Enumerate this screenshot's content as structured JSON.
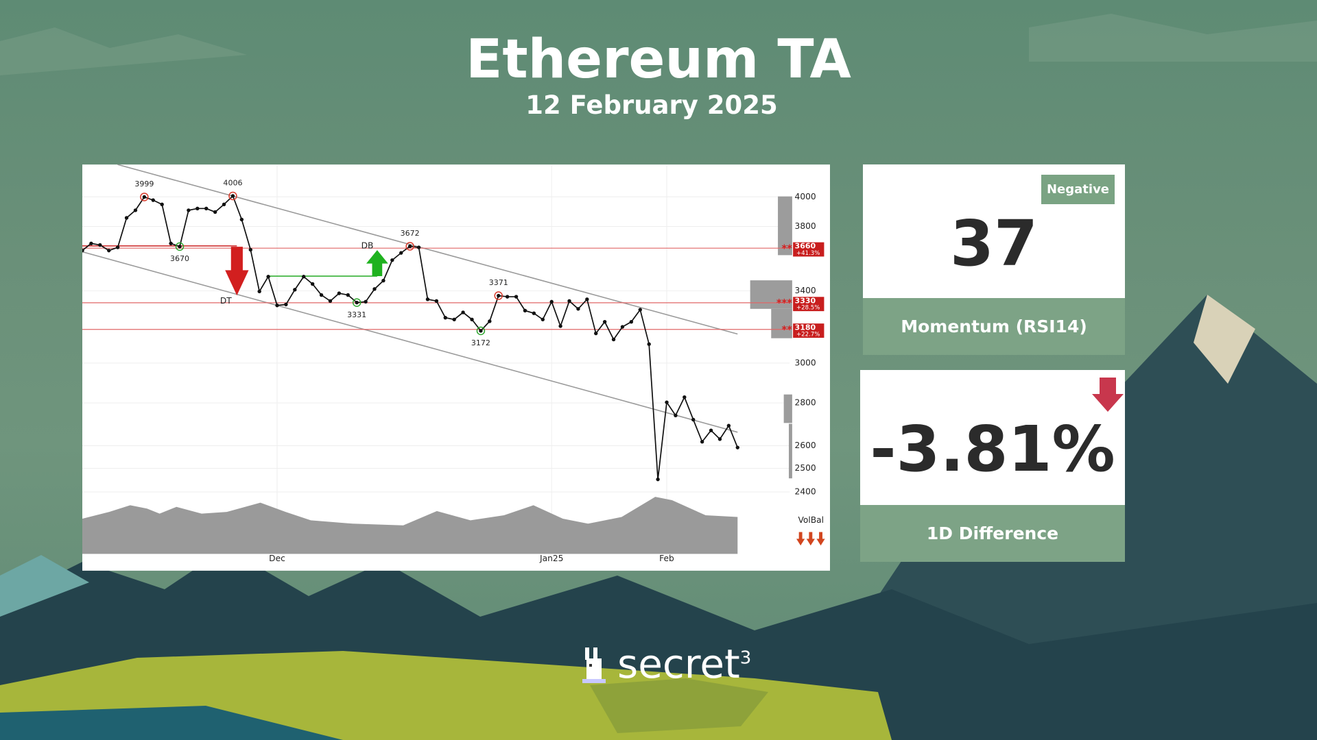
{
  "header": {
    "title": "Ethereum TA",
    "date": "12 February 2025"
  },
  "chart_data": {
    "type": "line",
    "categories": [
      null,
      null,
      null,
      null,
      null,
      null,
      null,
      null,
      null,
      null,
      null,
      null,
      null,
      null,
      null,
      null,
      null,
      null,
      null,
      null,
      null,
      null,
      "Dec",
      null,
      null,
      null,
      null,
      null,
      null,
      null,
      null,
      null,
      null,
      null,
      null,
      null,
      null,
      null,
      null,
      null,
      null,
      null,
      null,
      null,
      null,
      null,
      null,
      null,
      null,
      null,
      null,
      null,
      null,
      "Jan25",
      null,
      null,
      null,
      null,
      null,
      null,
      null,
      null,
      null,
      null,
      null,
      null,
      "Feb",
      null,
      null,
      null,
      null,
      null,
      null,
      null,
      null
    ],
    "values": [
      3645,
      3690,
      3680,
      3645,
      3665,
      3857,
      3908,
      3999,
      3977,
      3948,
      3690,
      3670,
      3908,
      3920,
      3920,
      3896,
      3948,
      4006,
      3846,
      3650,
      3396,
      3484,
      3315,
      3320,
      3406,
      3484,
      3440,
      3375,
      3340,
      3385,
      3375,
      3331,
      3336,
      3410,
      3460,
      3585,
      3630,
      3672,
      3665,
      3350,
      3340,
      3245,
      3235,
      3275,
      3235,
      3172,
      3225,
      3371,
      3365,
      3365,
      3285,
      3270,
      3235,
      3336,
      3198,
      3340,
      3295,
      3350,
      3158,
      3222,
      3125,
      3194,
      3222,
      3290,
      3100,
      2453,
      2803,
      2740,
      2828,
      2720,
      2618,
      2670,
      2630,
      2692,
      2592
    ],
    "value_labels": [
      null,
      null,
      null,
      null,
      null,
      null,
      null,
      "3999",
      null,
      null,
      null,
      "3670",
      null,
      null,
      null,
      null,
      null,
      "4006",
      null,
      null,
      null,
      null,
      null,
      null,
      null,
      null,
      null,
      null,
      null,
      null,
      null,
      "3331",
      null,
      null,
      null,
      null,
      null,
      "3672",
      null,
      null,
      null,
      null,
      null,
      null,
      null,
      "3172",
      null,
      "3371",
      null,
      null,
      null,
      null,
      null,
      null,
      null,
      null,
      null,
      null,
      null,
      null,
      null,
      null,
      null,
      null,
      null,
      null,
      null,
      null,
      null,
      null,
      null,
      null,
      null,
      null,
      null
    ],
    "color": "#111111",
    "ylim": [
      2380,
      4230
    ],
    "yticks": [
      4000,
      3800,
      3400,
      3000,
      2800,
      2600,
      2500,
      2400
    ],
    "log_scale": true,
    "grid": true,
    "levels": [
      {
        "value": 3660,
        "marker": "**",
        "label": "3660",
        "change": "+41.3%"
      },
      {
        "value": 3330,
        "marker": "***",
        "label": "3330",
        "change": "+28.5%"
      },
      {
        "value": 3180,
        "marker": "**",
        "label": "3180",
        "change": "+22.7%"
      }
    ],
    "annotations": [
      "DT",
      "DB",
      "VolBal"
    ]
  },
  "cards": [
    {
      "badge": "Negative",
      "value": 37,
      "label": "Momentum (RSI14)"
    },
    {
      "value": "-3.81%",
      "label": "1D Difference"
    }
  ],
  "logo": {
    "text": "secret",
    "superscript": "3"
  }
}
